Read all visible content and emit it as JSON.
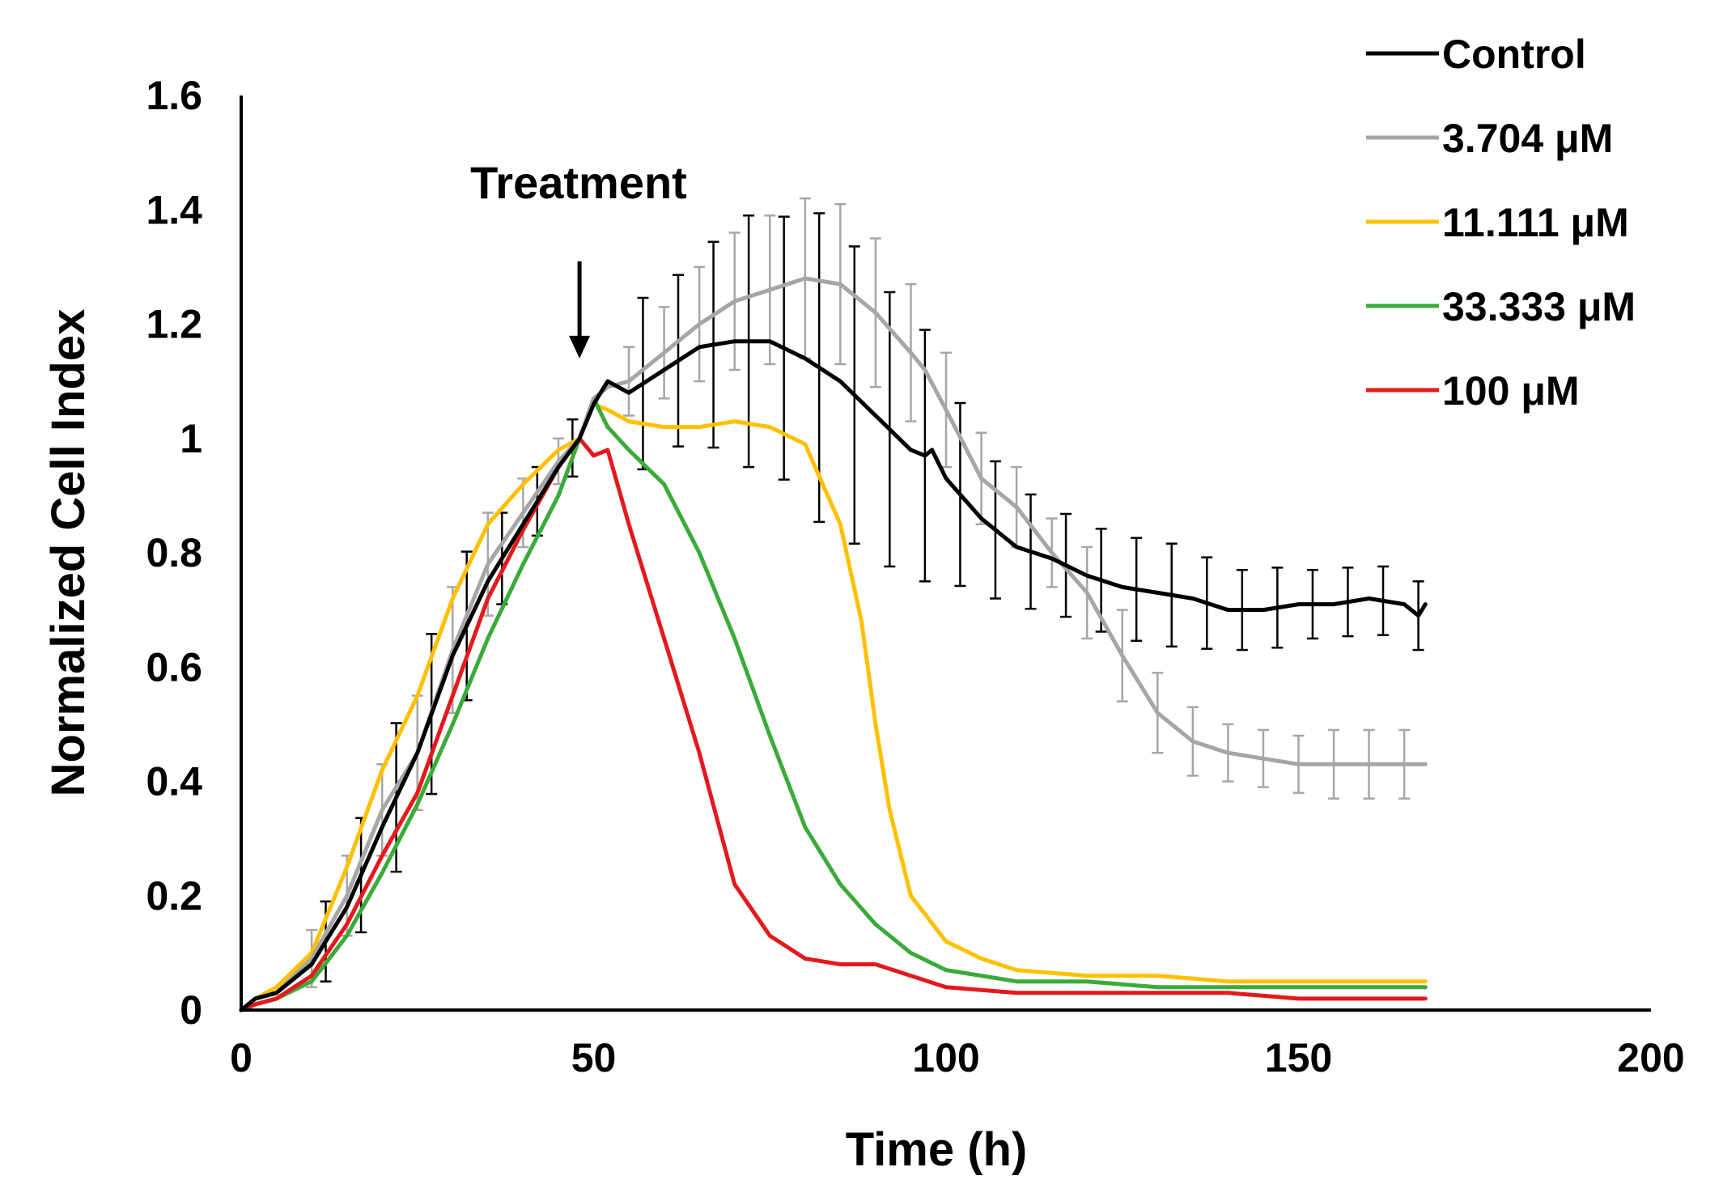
{
  "chart_data": {
    "type": "line",
    "title": "",
    "xlabel": "Time (h)",
    "ylabel": "Normalized Cell Index",
    "xlim": [
      0,
      200
    ],
    "ylim": [
      0,
      1.6
    ],
    "x_ticks": [
      0,
      50,
      100,
      150,
      200
    ],
    "x_tick_labels": [
      "0",
      "50",
      "100",
      "150",
      "200"
    ],
    "y_ticks": [
      0,
      0.2,
      0.4,
      0.6,
      0.8,
      1.0,
      1.2,
      1.4,
      1.6
    ],
    "y_tick_labels": [
      "0",
      "0.2",
      "0.4",
      "0.6",
      "0.8",
      "1",
      "1.2",
      "1.4",
      "1.6"
    ],
    "grid": false,
    "legend_position": "top-right",
    "annotation": {
      "text": "Treatment",
      "x": 48,
      "arrow_from_y": 1.31,
      "arrow_to_y": 1.14
    },
    "series": [
      {
        "name": "Control",
        "color": "#000000",
        "x": [
          0,
          2,
          5,
          10,
          15,
          20,
          25,
          30,
          35,
          40,
          45,
          48,
          50,
          52,
          55,
          60,
          65,
          70,
          75,
          80,
          85,
          90,
          95,
          97,
          98,
          100,
          105,
          110,
          115,
          120,
          125,
          130,
          135,
          140,
          145,
          150,
          155,
          160,
          165,
          167,
          168
        ],
        "y": [
          0,
          0.02,
          0.03,
          0.08,
          0.18,
          0.32,
          0.45,
          0.62,
          0.75,
          0.85,
          0.95,
          1.0,
          1.06,
          1.1,
          1.08,
          1.12,
          1.16,
          1.17,
          1.17,
          1.14,
          1.1,
          1.04,
          0.98,
          0.97,
          0.98,
          0.93,
          0.86,
          0.81,
          0.79,
          0.76,
          0.74,
          0.73,
          0.72,
          0.7,
          0.7,
          0.71,
          0.71,
          0.72,
          0.71,
          0.69,
          0.71
        ],
        "error_x": [
          12,
          17,
          22,
          27,
          32,
          37,
          42,
          47,
          57,
          62,
          67,
          72,
          77,
          82,
          87,
          92,
          97,
          102,
          107,
          112,
          117,
          122,
          127,
          132,
          137,
          142,
          147,
          152,
          157,
          162,
          167
        ],
        "error_y": [
          0.07,
          0.1,
          0.13,
          0.14,
          0.13,
          0.08,
          0.06,
          0.05,
          0.15,
          0.15,
          0.18,
          0.22,
          0.23,
          0.27,
          0.26,
          0.24,
          0.22,
          0.16,
          0.12,
          0.1,
          0.09,
          0.09,
          0.09,
          0.09,
          0.08,
          0.07,
          0.07,
          0.06,
          0.06,
          0.06,
          0.06
        ]
      },
      {
        "name": "3.704 μM",
        "color": "#a6a6a6",
        "x": [
          0,
          2,
          5,
          10,
          15,
          20,
          25,
          30,
          35,
          40,
          45,
          48,
          50,
          52,
          55,
          60,
          65,
          70,
          75,
          80,
          85,
          90,
          95,
          97,
          100,
          105,
          110,
          115,
          120,
          125,
          130,
          135,
          140,
          145,
          150,
          155,
          160,
          165,
          168
        ],
        "y": [
          0,
          0.02,
          0.03,
          0.09,
          0.2,
          0.35,
          0.45,
          0.63,
          0.78,
          0.87,
          0.96,
          1.0,
          1.07,
          1.09,
          1.1,
          1.15,
          1.2,
          1.24,
          1.26,
          1.28,
          1.27,
          1.22,
          1.15,
          1.12,
          1.05,
          0.93,
          0.88,
          0.8,
          0.73,
          0.62,
          0.52,
          0.47,
          0.45,
          0.44,
          0.43,
          0.43,
          0.43,
          0.43,
          0.43
        ],
        "error_x": [
          10,
          15,
          20,
          25,
          30,
          35,
          40,
          45,
          55,
          60,
          65,
          70,
          75,
          80,
          85,
          90,
          95,
          100,
          105,
          110,
          115,
          120,
          125,
          130,
          135,
          140,
          145,
          150,
          155,
          160,
          165
        ],
        "error_y": [
          0.05,
          0.07,
          0.08,
          0.1,
          0.11,
          0.09,
          0.06,
          0.04,
          0.06,
          0.08,
          0.1,
          0.12,
          0.13,
          0.14,
          0.14,
          0.13,
          0.12,
          0.1,
          0.08,
          0.07,
          0.06,
          0.08,
          0.08,
          0.07,
          0.06,
          0.05,
          0.05,
          0.05,
          0.06,
          0.06,
          0.06
        ]
      },
      {
        "name": "11.111 μM",
        "color": "#ffc000",
        "x": [
          0,
          2,
          5,
          10,
          15,
          20,
          25,
          30,
          35,
          40,
          45,
          48,
          50,
          52,
          55,
          60,
          65,
          70,
          75,
          80,
          85,
          88,
          90,
          92,
          95,
          100,
          105,
          110,
          120,
          130,
          140,
          150,
          160,
          168
        ],
        "y": [
          0,
          0.02,
          0.04,
          0.1,
          0.25,
          0.42,
          0.55,
          0.72,
          0.85,
          0.92,
          0.98,
          1.0,
          1.06,
          1.05,
          1.03,
          1.02,
          1.02,
          1.03,
          1.02,
          0.99,
          0.85,
          0.68,
          0.5,
          0.35,
          0.2,
          0.12,
          0.09,
          0.07,
          0.06,
          0.06,
          0.05,
          0.05,
          0.05,
          0.05
        ],
        "error_x": [],
        "error_y": []
      },
      {
        "name": "33.333 μM",
        "color": "#3aab3a",
        "x": [
          0,
          2,
          5,
          10,
          15,
          20,
          25,
          30,
          35,
          40,
          45,
          48,
          50,
          52,
          55,
          60,
          65,
          70,
          75,
          80,
          85,
          90,
          95,
          100,
          105,
          110,
          120,
          130,
          140,
          150,
          160,
          168
        ],
        "y": [
          0,
          0.01,
          0.02,
          0.05,
          0.13,
          0.24,
          0.36,
          0.5,
          0.65,
          0.78,
          0.9,
          1.0,
          1.07,
          1.02,
          0.98,
          0.92,
          0.8,
          0.65,
          0.48,
          0.32,
          0.22,
          0.15,
          0.1,
          0.07,
          0.06,
          0.05,
          0.05,
          0.04,
          0.04,
          0.04,
          0.04,
          0.04
        ],
        "error_x": [],
        "error_y": []
      },
      {
        "name": "100 μM",
        "color": "#e31a1c",
        "x": [
          0,
          2,
          5,
          10,
          15,
          20,
          25,
          30,
          35,
          40,
          45,
          48,
          50,
          52,
          55,
          60,
          65,
          70,
          75,
          80,
          85,
          90,
          95,
          100,
          110,
          120,
          130,
          140,
          150,
          160,
          168
        ],
        "y": [
          0,
          0.01,
          0.02,
          0.06,
          0.15,
          0.27,
          0.38,
          0.55,
          0.72,
          0.84,
          0.95,
          1.0,
          0.97,
          0.98,
          0.85,
          0.65,
          0.45,
          0.22,
          0.13,
          0.09,
          0.08,
          0.08,
          0.06,
          0.04,
          0.03,
          0.03,
          0.03,
          0.03,
          0.02,
          0.02,
          0.02
        ],
        "error_x": [],
        "error_y": []
      }
    ]
  }
}
